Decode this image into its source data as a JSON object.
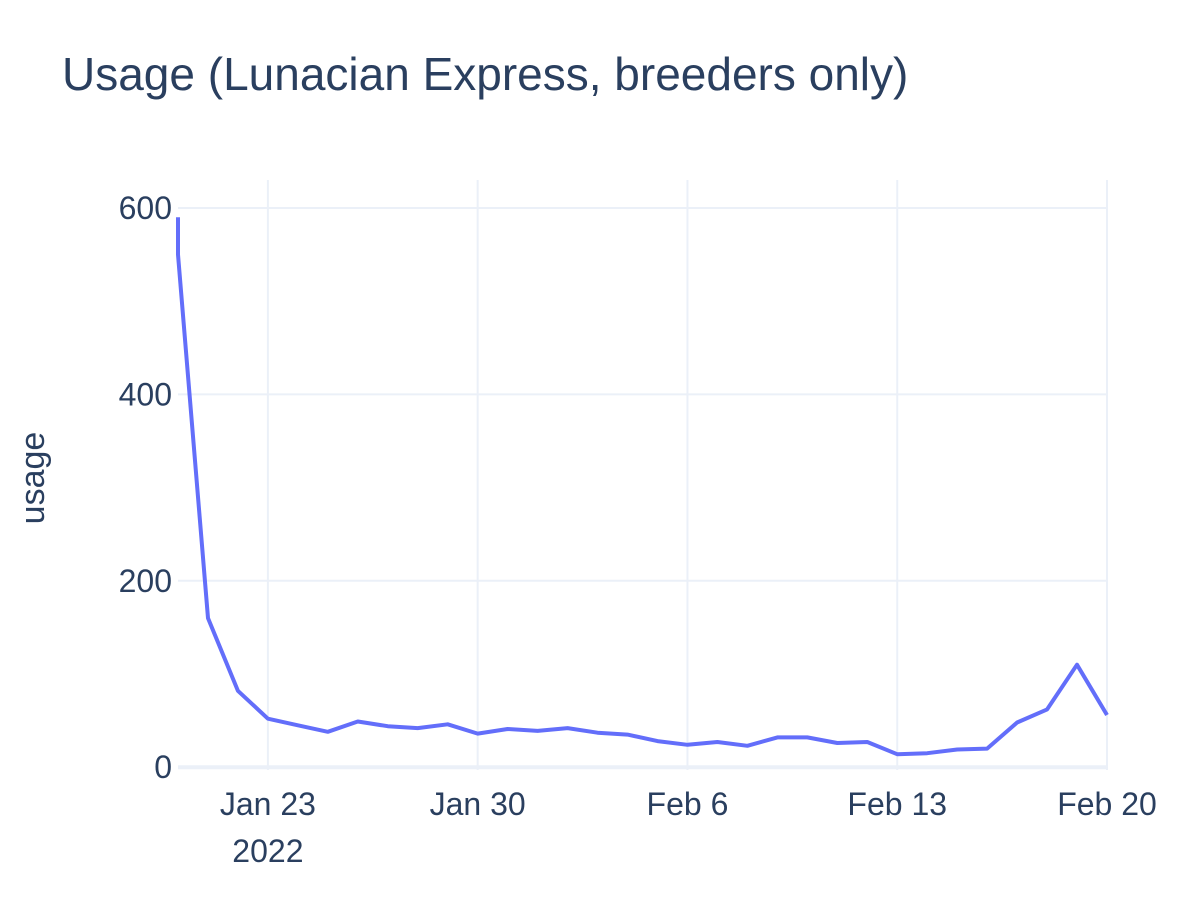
{
  "chart_data": {
    "type": "line",
    "title": "Usage (Lunacian Express, breeders only)",
    "xlabel": "",
    "ylabel": "usage",
    "x_ticks": [
      {
        "date": "2022-01-23",
        "label": "Jan 23",
        "sublabel": "2022"
      },
      {
        "date": "2022-01-30",
        "label": "Jan 30",
        "sublabel": ""
      },
      {
        "date": "2022-02-06",
        "label": "Feb 6",
        "sublabel": ""
      },
      {
        "date": "2022-02-13",
        "label": "Feb 13",
        "sublabel": ""
      },
      {
        "date": "2022-02-20",
        "label": "Feb 20",
        "sublabel": ""
      }
    ],
    "y_ticks": [
      0,
      200,
      400,
      600
    ],
    "xlim": [
      "2022-01-20",
      "2022-02-20"
    ],
    "ylim": [
      -3,
      630
    ],
    "grid": true,
    "colors": {
      "line": "#636efa",
      "grid": "#ebf0f8",
      "text": "#2a3f5f",
      "background": "#ffffff"
    },
    "series": [
      {
        "x": [
          "2022-01-20",
          "2022-01-20",
          "2022-01-21",
          "2022-01-22",
          "2022-01-23",
          "2022-01-24",
          "2022-01-25",
          "2022-01-26",
          "2022-01-27",
          "2022-01-28",
          "2022-01-29",
          "2022-01-30",
          "2022-01-31",
          "2022-02-01",
          "2022-02-02",
          "2022-02-03",
          "2022-02-04",
          "2022-02-05",
          "2022-02-06",
          "2022-02-07",
          "2022-02-08",
          "2022-02-09",
          "2022-02-10",
          "2022-02-11",
          "2022-02-12",
          "2022-02-13",
          "2022-02-14",
          "2022-02-15",
          "2022-02-16",
          "2022-02-17",
          "2022-02-18",
          "2022-02-19",
          "2022-02-20"
        ],
        "y": [
          590,
          550,
          160,
          82,
          52,
          45,
          38,
          49,
          44,
          42,
          46,
          36,
          41,
          39,
          42,
          37,
          35,
          28,
          24,
          27,
          23,
          32,
          32,
          26,
          27,
          14,
          15,
          19,
          20,
          48,
          62,
          110,
          56
        ]
      }
    ]
  }
}
